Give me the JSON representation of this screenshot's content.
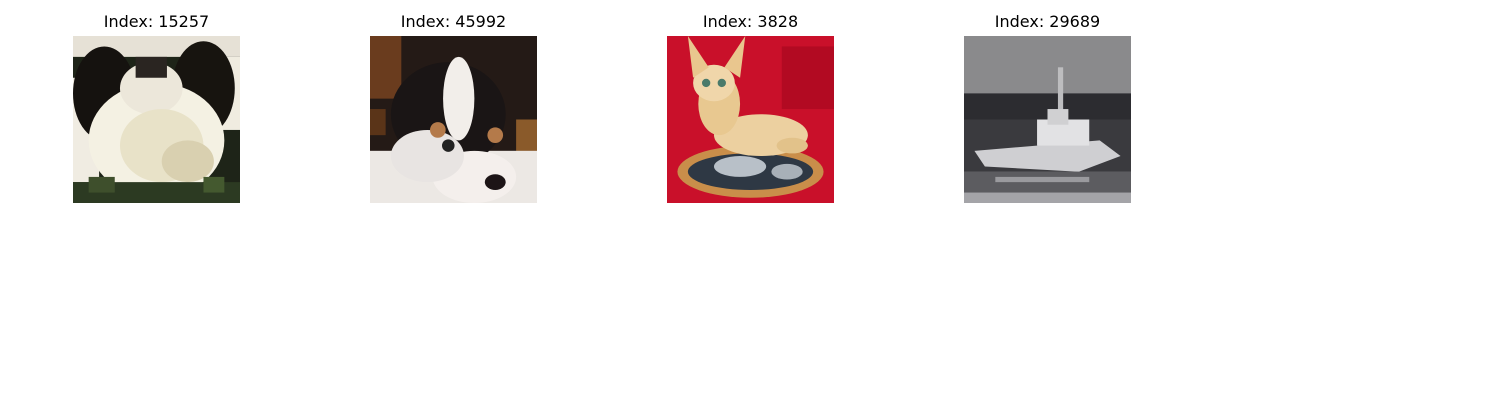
{
  "grid": {
    "panels": [
      {
        "title": "Index: 15257",
        "subject": "fluffy-white-black-dog"
      },
      {
        "title": "Index: 45992",
        "subject": "black-white-puppy"
      },
      {
        "title": "Index: 3828",
        "subject": "chihuahua-figurine-red"
      },
      {
        "title": "Index: 29689",
        "subject": "grayscale-boat"
      }
    ]
  }
}
